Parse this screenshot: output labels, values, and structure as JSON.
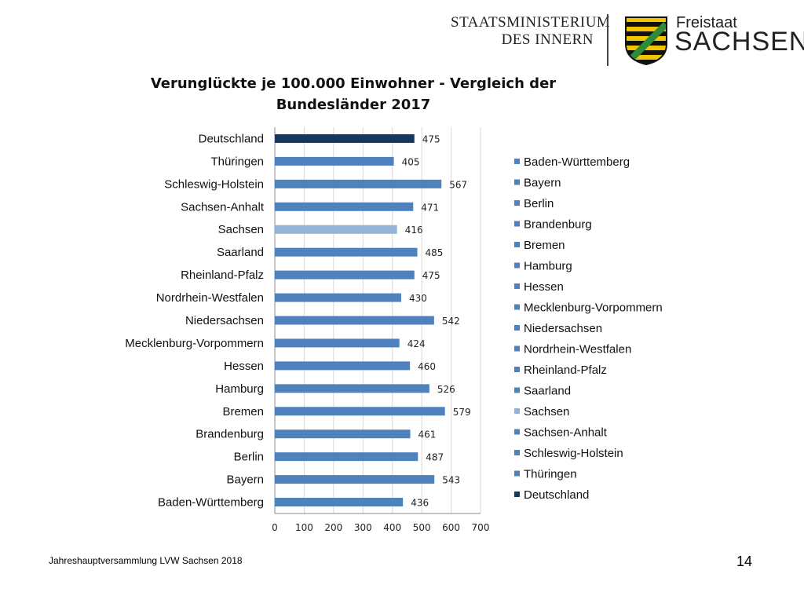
{
  "header": {
    "ministry_line1": "STAATSMINISTERIUM",
    "ministry_line2": "DES INNERN",
    "state_small": "Freistaat",
    "state_large": "SACHSEN"
  },
  "footer": {
    "text": "Jahreshauptversammlung LVW Sachsen 2018",
    "page_number": "14"
  },
  "colors": {
    "default_bar": "#4f81bd",
    "sachsen_bar": "#95b3d7",
    "deutschland_bar": "#17375e",
    "coat_yellow": "#f2c500",
    "coat_green": "#2e8b3c"
  },
  "chart_data": {
    "type": "bar",
    "orientation": "horizontal",
    "title": "Verunglückte je 100.000 Einwohner - Vergleich der Bundesländer 2017",
    "categories": [
      "Deutschland",
      "Thüringen",
      "Schleswig-Holstein",
      "Sachsen-Anhalt",
      "Sachsen",
      "Saarland",
      "Rheinland-Pfalz",
      "Nordrhein-Westfalen",
      "Niedersachsen",
      "Mecklenburg-Vorpommern",
      "Hessen",
      "Hamburg",
      "Bremen",
      "Brandenburg",
      "Berlin",
      "Bayern",
      "Baden-Württemberg"
    ],
    "values": [
      475,
      405,
      567,
      471,
      416,
      485,
      475,
      430,
      542,
      424,
      460,
      526,
      579,
      461,
      487,
      543,
      436
    ],
    "xlim": [
      0,
      700
    ],
    "xticks": [
      0,
      100,
      200,
      300,
      400,
      500,
      600,
      700
    ],
    "grid": true,
    "legend_position": "right",
    "legend": [
      "Baden-Württemberg",
      "Bayern",
      "Berlin",
      "Brandenburg",
      "Bremen",
      "Hamburg",
      "Hessen",
      "Mecklenburg-Vorpommern",
      "Niedersachsen",
      "Nordrhein-Westfalen",
      "Rheinland-Pfalz",
      "Saarland",
      "Sachsen",
      "Sachsen-Anhalt",
      "Schleswig-Holstein",
      "Thüringen",
      "Deutschland"
    ]
  }
}
